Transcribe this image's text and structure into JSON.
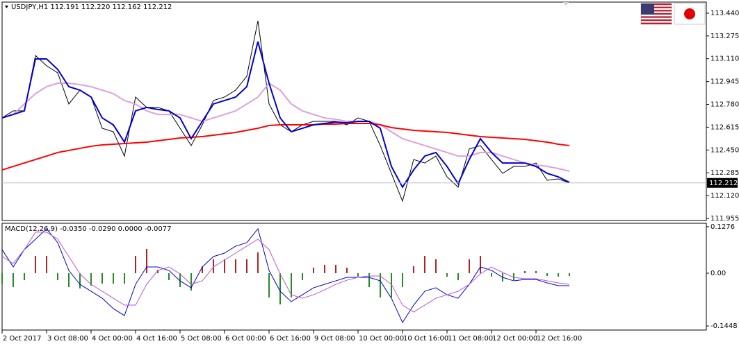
{
  "chart_data": [
    {
      "type": "line",
      "title": "USDJPY,H1  112.191 112.220 112.162 112.212",
      "x": [
        0,
        4,
        8,
        12,
        16,
        20,
        24,
        28,
        32,
        36,
        40,
        44,
        48,
        52,
        56,
        60,
        64,
        68,
        72,
        76,
        80,
        84,
        88,
        92,
        96,
        100,
        104,
        108,
        112,
        116,
        120,
        124,
        128,
        132,
        136,
        140,
        144,
        148,
        152,
        156,
        160,
        164,
        168,
        172,
        176,
        180,
        184,
        188,
        192,
        196,
        200,
        204
      ],
      "xlim": [
        0,
        253.25
      ],
      "xticks": [
        {
          "value": 0,
          "label": "2 Oct 2017"
        },
        {
          "value": 16,
          "label": "3 Oct 08:00"
        },
        {
          "value": 32,
          "label": "4 Oct 00:00"
        },
        {
          "value": 48,
          "label": "4 Oct 16:00"
        },
        {
          "value": 64,
          "label": "5 Oct 08:00"
        },
        {
          "value": 80,
          "label": "6 Oct 00:00"
        },
        {
          "value": 96,
          "label": "6 Oct 16:00"
        },
        {
          "value": 112,
          "label": "9 Oct 08:00"
        },
        {
          "value": 128,
          "label": "10 Oct 00:00"
        },
        {
          "value": 144,
          "label": "10 Oct 16:00"
        },
        {
          "value": 160,
          "label": "11 Oct 08:00"
        },
        {
          "value": 176,
          "label": "12 Oct 00:00"
        },
        {
          "value": 192,
          "label": "12 Oct 16:00"
        }
      ],
      "ylim": [
        111.94,
        113.52
      ],
      "yticks": [
        {
          "value": 113.44,
          "label": "113.440"
        },
        113.275,
        {
          "value": 113.11,
          "label": "113.110"
        },
        112.945,
        {
          "value": 112.78,
          "label": "112.780"
        },
        112.615,
        {
          "value": 112.45,
          "label": "112.450"
        },
        112.285,
        {
          "value": 112.12,
          "label": "112.120"
        },
        111.955
      ],
      "price_label": 112.212,
      "grid": false,
      "series": [
        {
          "color": "#000000",
          "width": 1,
          "values": [
            112.682,
            112.733,
            112.733,
            113.134,
            113.059,
            113.008,
            112.783,
            112.883,
            112.833,
            112.607,
            112.582,
            112.406,
            112.833,
            112.758,
            112.758,
            112.733,
            112.607,
            112.482,
            112.632,
            112.808,
            112.833,
            112.883,
            112.983,
            113.385,
            112.783,
            112.632,
            112.582,
            112.632,
            112.657,
            112.657,
            112.657,
            112.632,
            112.682,
            112.657,
            112.482,
            112.281,
            112.08,
            112.381,
            112.356,
            112.406,
            112.256,
            112.181,
            112.457,
            112.482,
            112.381,
            112.281,
            112.331,
            112.331,
            112.356,
            112.231,
            112.241,
            112.212
          ]
        },
        {
          "color": "#dda0dd",
          "width": 2,
          "values": [
            112.682,
            112.707,
            112.783,
            112.858,
            112.908,
            112.933,
            112.933,
            112.923,
            112.908,
            112.883,
            112.858,
            112.808,
            112.783,
            112.733,
            112.707,
            112.707,
            112.707,
            112.682,
            112.657,
            112.682,
            112.707,
            112.733,
            112.783,
            112.833,
            112.933,
            112.883,
            112.783,
            112.733,
            112.707,
            112.682,
            112.672,
            112.657,
            112.657,
            112.657,
            112.632,
            112.582,
            112.532,
            112.507,
            112.482,
            112.457,
            112.432,
            112.406,
            112.406,
            112.432,
            112.432,
            112.406,
            112.381,
            112.356,
            112.341,
            112.331,
            112.316,
            112.296
          ]
        },
        {
          "color": "#ff0000",
          "width": 2,
          "values": [
            112.306,
            112.331,
            112.356,
            112.381,
            112.406,
            112.432,
            112.447,
            112.462,
            112.477,
            112.487,
            112.492,
            112.497,
            112.502,
            112.507,
            112.517,
            112.527,
            112.537,
            112.542,
            112.547,
            112.557,
            112.567,
            112.577,
            112.592,
            112.607,
            112.627,
            112.632,
            112.632,
            112.632,
            112.632,
            112.637,
            112.637,
            112.642,
            112.642,
            112.642,
            112.632,
            112.612,
            112.602,
            112.592,
            112.587,
            112.582,
            112.577,
            112.567,
            112.557,
            112.547,
            112.542,
            112.537,
            112.532,
            112.527,
            112.517,
            112.507,
            112.492,
            112.482
          ]
        },
        {
          "color": "#0000cd",
          "width": 2,
          "values": [
            112.682,
            112.707,
            112.733,
            113.109,
            113.109,
            113.033,
            112.908,
            112.883,
            112.833,
            112.682,
            112.632,
            112.507,
            112.733,
            112.758,
            112.743,
            112.733,
            112.682,
            112.532,
            112.657,
            112.783,
            112.808,
            112.833,
            112.908,
            113.234,
            112.933,
            112.682,
            112.582,
            112.607,
            112.632,
            112.642,
            112.652,
            112.647,
            112.657,
            112.657,
            112.607,
            112.331,
            112.181,
            112.306,
            112.406,
            112.432,
            112.331,
            112.206,
            112.381,
            112.532,
            112.432,
            112.356,
            112.356,
            112.356,
            112.331,
            112.281,
            112.256,
            112.216
          ]
        }
      ]
    },
    {
      "type": "macd",
      "title": "MACD(12,26,9) -0.0350 -0.0290 0.0000 -0.0077",
      "x": [
        0,
        4,
        8,
        12,
        16,
        20,
        24,
        28,
        32,
        36,
        40,
        44,
        48,
        52,
        56,
        60,
        64,
        68,
        72,
        76,
        80,
        84,
        88,
        92,
        96,
        100,
        104,
        108,
        112,
        116,
        120,
        124,
        128,
        132,
        136,
        140,
        144,
        148,
        152,
        156,
        160,
        164,
        168,
        172,
        176,
        180,
        184,
        188,
        192,
        196,
        200,
        204
      ],
      "xlim": [
        0,
        253.25
      ],
      "ylim": [
        -0.156,
        0.137
      ],
      "yticks": [
        0.1276,
        {
          "value": 0,
          "label": "0.00"
        },
        -0.1448
      ],
      "series": [
        {
          "style": "bar",
          "color": "#b22222",
          "negative_color": "#228b22",
          "values": [
            -0.0286,
            -0.0381,
            -0.0191,
            0.0476,
            0.0476,
            -0.0191,
            -0.0381,
            -0.0419,
            -0.0343,
            -0.0286,
            -0.0286,
            -0.0286,
            0.0476,
            0.0667,
            0.0095,
            -0.0191,
            -0.0381,
            -0.0476,
            0.0191,
            0.0381,
            0.0381,
            0.0381,
            0.0381,
            0.0572,
            -0.0667,
            -0.0857,
            -0.0667,
            -0.0191,
            0.0152,
            0.0229,
            0.0229,
            0.0152,
            -0.0095,
            -0.0381,
            -0.0667,
            -0.0667,
            -0.0381,
            0.0191,
            0.0476,
            0.0381,
            -0.0095,
            -0.0191,
            0.0381,
            0.0476,
            -0.0095,
            -0.0229,
            -0.0191,
            0.0057,
            0.0057,
            -0.0076,
            -0.0095,
            -0.0076
          ]
        },
        {
          "style": "line",
          "color": "#0000cd",
          "values": [
            0.0648,
            0.0171,
            0.0648,
            0.0933,
            0.1219,
            0.0838,
            0.0076,
            -0.0305,
            -0.0495,
            -0.0686,
            -0.0972,
            -0.1162,
            -0.0305,
            0.0171,
            0.0171,
            0.0076,
            -0.021,
            -0.04,
            0.0171,
            0.0457,
            0.0552,
            0.0743,
            0.0838,
            0.1219,
            0.0076,
            -0.0495,
            -0.0781,
            -0.0591,
            -0.04,
            -0.0305,
            -0.021,
            -0.0114,
            -0.0114,
            -0.0114,
            -0.021,
            -0.0686,
            -0.1353,
            -0.0876,
            -0.0495,
            -0.04,
            -0.0591,
            -0.0686,
            -0.0305,
            0.0171,
            0.0076,
            -0.0114,
            -0.021,
            -0.0171,
            -0.0171,
            -0.0267,
            -0.0343,
            -0.0343
          ]
        },
        {
          "style": "line",
          "color": "#ba55d3",
          "values": [
            0.0457,
            0.0267,
            0.0648,
            0.1124,
            0.1124,
            0.0933,
            0.0457,
            -0.0019,
            -0.0305,
            -0.0495,
            -0.0686,
            -0.0876,
            -0.0876,
            -0.0305,
            0.0076,
            0.0171,
            -0.0019,
            -0.0305,
            -0.021,
            0.0171,
            0.0362,
            0.0552,
            0.0743,
            0.0933,
            0.0648,
            -0.0019,
            -0.0591,
            -0.0686,
            -0.0591,
            -0.0457,
            -0.0305,
            -0.0191,
            -0.0114,
            -0.0076,
            -0.0076,
            -0.0305,
            -0.0876,
            -0.1067,
            -0.0876,
            -0.0686,
            -0.0591,
            -0.0495,
            -0.0305,
            -0.0019,
            0.0171,
            0.0019,
            -0.0114,
            -0.0152,
            -0.0152,
            -0.021,
            -0.0267,
            -0.0305
          ]
        }
      ]
    }
  ]
}
